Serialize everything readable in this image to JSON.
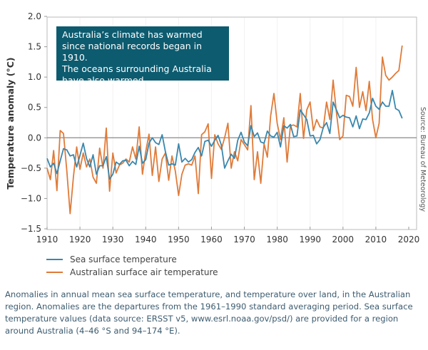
{
  "chart_data": {
    "type": "line",
    "ylabel": "Temperature anomaly (°C)",
    "ylim": [
      -1.5,
      2.0
    ],
    "yticks": [
      "2.0",
      "1.5",
      "1.0",
      "0.5",
      "0.0",
      "−0.5",
      "−1.0",
      "−1.5"
    ],
    "yticks_values": [
      2.0,
      1.5,
      1.0,
      0.5,
      0.0,
      -0.5,
      -1.0,
      -1.5
    ],
    "xlim": [
      1910,
      2020
    ],
    "xticks": [
      "1910",
      "1920",
      "1930",
      "1940",
      "1950",
      "1960",
      "1970",
      "1980",
      "1990",
      "2000",
      "2010",
      "2020"
    ],
    "xticks_values": [
      1910,
      1920,
      1930,
      1940,
      1950,
      1960,
      1970,
      1980,
      1990,
      2000,
      2010,
      2020
    ],
    "grid": "vertical",
    "x_start": 1910,
    "series": [
      {
        "name": "Sea surface temperature",
        "color": "#3a87ad",
        "values": [
          -0.34,
          -0.48,
          -0.42,
          -0.59,
          -0.38,
          -0.18,
          -0.2,
          -0.3,
          -0.28,
          -0.48,
          -0.29,
          -0.09,
          -0.34,
          -0.48,
          -0.28,
          -0.6,
          -0.46,
          -0.46,
          -0.31,
          -0.68,
          -0.6,
          -0.4,
          -0.44,
          -0.38,
          -0.37,
          -0.46,
          -0.39,
          -0.44,
          -0.14,
          -0.42,
          -0.36,
          -0.09,
          0.0,
          -0.08,
          -0.11,
          0.05,
          -0.23,
          -0.45,
          -0.43,
          -0.45,
          -0.1,
          -0.4,
          -0.34,
          -0.4,
          -0.36,
          -0.24,
          -0.16,
          -0.3,
          -0.06,
          -0.04,
          -0.14,
          -0.04,
          0.04,
          -0.12,
          -0.5,
          -0.38,
          -0.27,
          -0.34,
          -0.04,
          0.09,
          -0.07,
          -0.13,
          0.2,
          0.02,
          0.08,
          -0.07,
          -0.09,
          0.11,
          0.03,
          0.01,
          0.09,
          -0.15,
          0.2,
          0.16,
          0.22,
          0.02,
          0.03,
          0.46,
          0.38,
          0.3,
          0.03,
          0.04,
          -0.1,
          -0.03,
          0.17,
          0.25,
          0.07,
          0.59,
          0.46,
          0.33,
          0.37,
          0.34,
          0.33,
          0.18,
          0.36,
          0.15,
          0.31,
          0.3,
          0.41,
          0.65,
          0.52,
          0.47,
          0.59,
          0.52,
          0.52,
          0.78,
          0.48,
          0.45,
          0.32
        ]
      },
      {
        "name": "Australian surface air temperature",
        "color": "#e07b39",
        "values": [
          -0.5,
          -0.69,
          -0.21,
          -0.87,
          0.12,
          0.07,
          -0.55,
          -1.25,
          -0.65,
          -0.15,
          -0.52,
          -0.25,
          -0.48,
          -0.35,
          -0.65,
          -0.75,
          -0.17,
          -0.5,
          0.16,
          -0.88,
          -0.25,
          -0.58,
          -0.45,
          -0.42,
          -0.35,
          -0.4,
          -0.15,
          -0.35,
          0.18,
          -0.6,
          -0.23,
          0.06,
          -0.62,
          -0.15,
          -0.72,
          -0.35,
          -0.25,
          -0.7,
          -0.3,
          -0.55,
          -0.95,
          -0.6,
          -0.45,
          -0.43,
          -0.45,
          -0.3,
          -0.92,
          0.05,
          0.1,
          0.23,
          -0.67,
          0.05,
          -0.1,
          -0.19,
          0.0,
          0.24,
          -0.5,
          -0.23,
          -0.38,
          -0.03,
          -0.11,
          -0.2,
          0.53,
          -0.69,
          -0.23,
          -0.75,
          -0.1,
          -0.32,
          0.36,
          0.73,
          0.24,
          -0.03,
          0.33,
          -0.4,
          0.2,
          0.21,
          0.18,
          0.73,
          -0.01,
          0.46,
          0.59,
          0.12,
          0.3,
          0.18,
          0.16,
          0.59,
          0.3,
          0.95,
          0.42,
          -0.03,
          0.03,
          0.7,
          0.68,
          0.52,
          1.16,
          0.5,
          0.76,
          0.45,
          0.93,
          0.3,
          0.0,
          0.24,
          1.33,
          1.03,
          0.95,
          1.0,
          1.06,
          1.11,
          1.52
        ]
      }
    ],
    "legend": "bottom-left",
    "source": "Source: Bureau of Meteorology"
  },
  "callout": {
    "lines": [
      "Australia’s climate has warmed",
      "since national records began in 1910.",
      "The oceans surrounding Australia",
      "have also warmed."
    ],
    "background": "#0d5b6f"
  },
  "caption": "Anomalies in annual mean sea surface temperature, and temperature over land, in the Australian region. Anomalies are the departures from the 1961–1990 standard averaging period. Sea surface temperature values (data source: ERSST v5, www.esrl.noaa.gov/psd/) are provided for a region around Australia (4–46 °S and 94–174 °E)."
}
